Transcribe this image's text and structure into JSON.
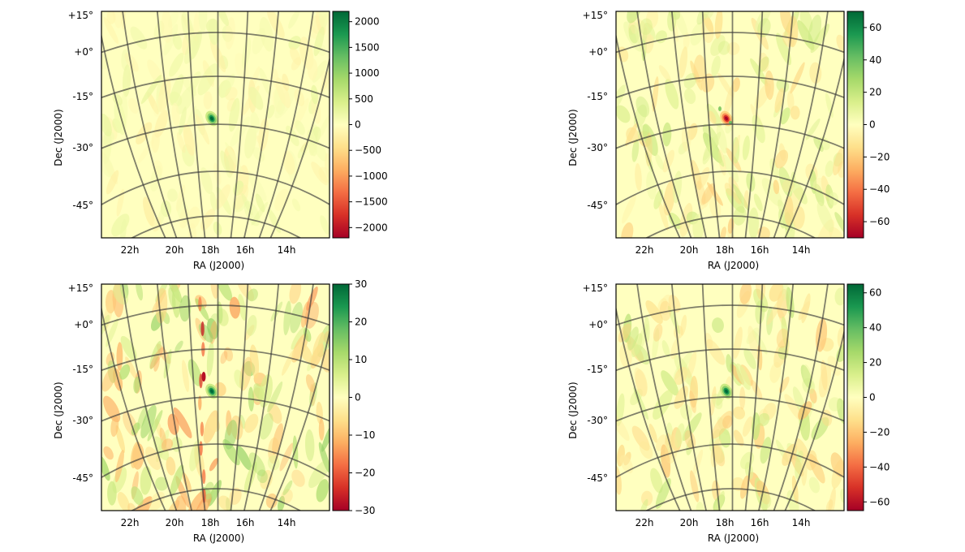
{
  "chart_data": [
    {
      "type": "heatmap",
      "projection": "sky map with curved RA/Dec graticule",
      "xlabel": "RA (J2000)",
      "ylabel": "Dec (J2000)",
      "ra_tick_labels": [
        "22h",
        "20h",
        "18h",
        "16h",
        "14h"
      ],
      "dec_tick_labels": [
        "+15°",
        "+0°",
        "-15°",
        "-30°",
        "-45°"
      ],
      "colormap": "RdYlGn",
      "colorbar": {
        "ticks": [
          2000,
          1500,
          1000,
          500,
          0,
          -500,
          -1000,
          -1500,
          -2000
        ],
        "range": [
          -2200,
          2200
        ]
      },
      "features": [
        {
          "kind": "peak",
          "ra": "18h",
          "dec": -22,
          "value": 2200,
          "note": "single bright compact source near Galactic centre"
        }
      ]
    },
    {
      "type": "heatmap",
      "projection": "sky map with curved RA/Dec graticule",
      "xlabel": "RA (J2000)",
      "ylabel": "Dec (J2000)",
      "ra_tick_labels": [
        "22h",
        "20h",
        "18h",
        "16h",
        "14h"
      ],
      "dec_tick_labels": [
        "+15°",
        "+0°",
        "-15°",
        "-30°",
        "-45°"
      ],
      "colormap": "RdYlGn",
      "colorbar": {
        "ticks": [
          60,
          40,
          20,
          0,
          -20,
          -40,
          -60
        ],
        "range": [
          -70,
          70
        ]
      },
      "features": [
        {
          "kind": "trough",
          "ra": "18h",
          "dec": -21,
          "value": -70,
          "note": "compact negative residual with weak surrounding ripples"
        }
      ]
    },
    {
      "type": "heatmap",
      "projection": "sky map with curved RA/Dec graticule",
      "xlabel": "RA (J2000)",
      "ylabel": "Dec (J2000)",
      "ra_tick_labels": [
        "22h",
        "20h",
        "18h",
        "16h",
        "14h"
      ],
      "dec_tick_labels": [
        "+15°",
        "+0°",
        "-15°",
        "-30°",
        "-45°"
      ],
      "colormap": "RdYlGn",
      "colorbar": {
        "ticks": [
          30,
          20,
          10,
          0,
          -10,
          -20,
          -30
        ],
        "range": [
          -30,
          30
        ]
      },
      "features": [
        {
          "kind": "peak",
          "ra": "18h",
          "dec": -20,
          "value": 30,
          "note": "positive peak beside a negative streak along RA 18h; strong striped noise"
        }
      ]
    },
    {
      "type": "heatmap",
      "projection": "sky map with curved RA/Dec graticule",
      "xlabel": "RA (J2000)",
      "ylabel": "Dec (J2000)",
      "ra_tick_labels": [
        "22h",
        "20h",
        "18h",
        "16h",
        "14h"
      ],
      "dec_tick_labels": [
        "+15°",
        "+0°",
        "-15°",
        "-30°",
        "-45°"
      ],
      "colormap": "RdYlGn",
      "colorbar": {
        "ticks": [
          60,
          40,
          20,
          0,
          -20,
          -40,
          -60
        ],
        "range": [
          -65,
          65
        ]
      },
      "features": [
        {
          "kind": "peak",
          "ra": "18h",
          "dec": -22,
          "value": 65,
          "note": "compact positive source with mild noise"
        }
      ]
    }
  ]
}
